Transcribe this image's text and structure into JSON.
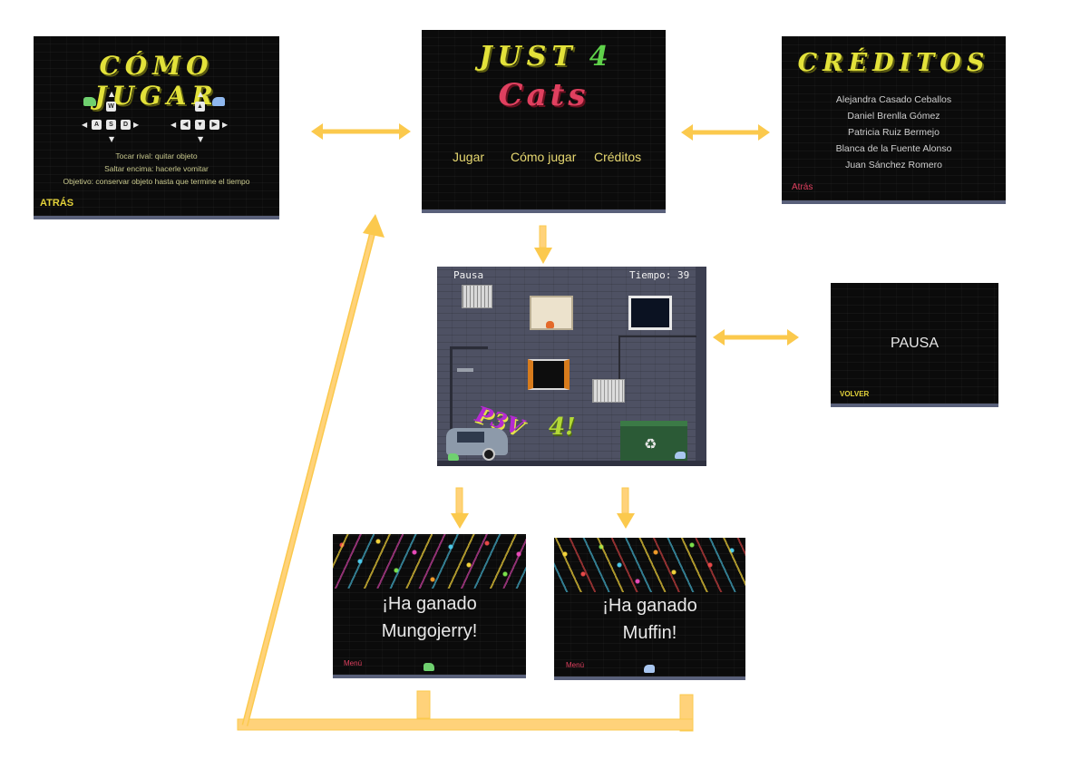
{
  "how_to_play": {
    "title": "CÓMO JUGAR",
    "keys_left": {
      "up": "W",
      "left": "A",
      "down": "S",
      "right": "D"
    },
    "rule_1": "Tocar rival: quitar objeto",
    "rule_2": "Saltar encima: hacerle vomitar",
    "rule_3": "Objetivo: conservar objeto hasta que termine el tiempo",
    "back": "ATRÁS"
  },
  "main_menu": {
    "title_line1": "JUST",
    "title_num": "4",
    "title_line2": "Cats",
    "options": [
      "Jugar",
      "Cómo jugar",
      "Créditos"
    ]
  },
  "credits": {
    "title": "CRÉDITOS",
    "names": [
      "Alejandra Casado Ceballos",
      "Daniel Brenlla Gómez",
      "Patricia Ruiz Bermejo",
      "Blanca de la Fuente Alonso",
      "Juan Sánchez Romero"
    ],
    "back": "Atrás"
  },
  "game": {
    "pause_label": "Pausa",
    "timer_label": "Tiempo: 39",
    "graffiti_1": "P3V",
    "graffiti_2": "4!"
  },
  "pause": {
    "title": "PAUSA",
    "back": "VOLVER"
  },
  "win_1": {
    "line1": "¡Ha ganado",
    "line2": "Mungojerry!",
    "menu": "Menú"
  },
  "win_2": {
    "line1": "¡Ha ganado",
    "line2": "Muffin!",
    "menu": "Menú"
  },
  "colors": {
    "arrow": "#fbc94d",
    "accent_yellow": "#e3e23a",
    "accent_pink": "#e0405f",
    "screen_bg": "#0b0b0b"
  }
}
